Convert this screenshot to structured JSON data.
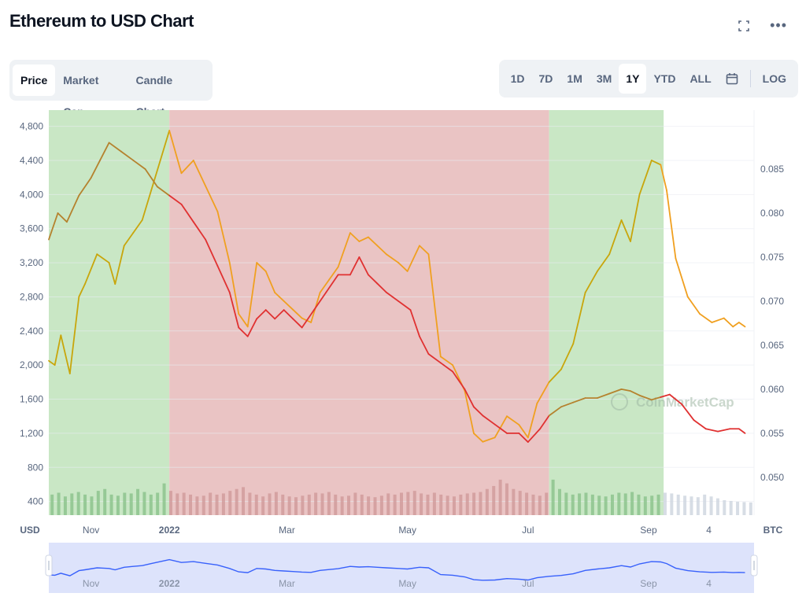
{
  "header": {
    "title": "Ethereum to USD Chart",
    "expand_icon": "expand-icon",
    "more_icon": "more-icon",
    "more_glyph": "•••"
  },
  "tabs": [
    {
      "label": "Price",
      "active": true
    },
    {
      "label": "Market Cap",
      "active": false
    },
    {
      "label": "Candle Chart",
      "active": false
    }
  ],
  "ranges": [
    {
      "label": "1D",
      "active": false
    },
    {
      "label": "7D",
      "active": false
    },
    {
      "label": "1M",
      "active": false
    },
    {
      "label": "3M",
      "active": false
    },
    {
      "label": "1Y",
      "active": true
    },
    {
      "label": "YTD",
      "active": false
    },
    {
      "label": "ALL",
      "active": false
    }
  ],
  "range_extra": {
    "calendar_icon": "calendar-icon",
    "log_label": "LOG"
  },
  "colors": {
    "up_zone": "#c9e7c5",
    "down_zone": "#eac4c4",
    "usd_up": "#c8a60c",
    "usd_down": "#f0a020",
    "btc_up": "#b5822e",
    "btc_down": "#e03131",
    "nav_fill": "#dde3fb",
    "nav_line": "#3861fb"
  },
  "chart_data": {
    "type": "line",
    "title": "Ethereum to USD Chart",
    "watermark": "CoinMarketCap",
    "left_axis": {
      "unit_label": "USD",
      "ticks": [
        400,
        800,
        1200,
        1600,
        2000,
        2400,
        2800,
        3200,
        3600,
        4000,
        4400,
        4800
      ],
      "ylim": [
        240,
        4990
      ]
    },
    "right_axis": {
      "unit_label": "BTC",
      "ticks": [
        0.05,
        0.055,
        0.06,
        0.065,
        0.07,
        0.075,
        0.08,
        0.085
      ],
      "tick_labels": [
        "0.050",
        "0.055",
        "0.060",
        "0.065",
        "0.070",
        "0.075",
        "0.080",
        "0.085"
      ],
      "ylim": [
        0.0457,
        0.0917
      ]
    },
    "x_ticks": [
      {
        "label": "Nov",
        "x": 0.7
      },
      {
        "label": "2022",
        "x": 2.0
      },
      {
        "label": "Mar",
        "x": 3.95
      },
      {
        "label": "May",
        "x": 5.95
      },
      {
        "label": "Jul",
        "x": 7.95
      },
      {
        "label": "Sep",
        "x": 9.95
      },
      {
        "label": "4",
        "x": 10.95
      }
    ],
    "xlim": [
      0,
      11.7
    ],
    "zones": [
      {
        "from": 0.0,
        "to": 2.0,
        "trend": "up"
      },
      {
        "from": 2.0,
        "to": 8.3,
        "trend": "down"
      },
      {
        "from": 8.3,
        "to": 10.2,
        "trend": "up"
      }
    ],
    "series": [
      {
        "axis": "left",
        "x": [
          0.0,
          0.1,
          0.2,
          0.35,
          0.5,
          0.6,
          0.8,
          1.0,
          1.1,
          1.25,
          1.4,
          1.55,
          1.7,
          1.85,
          2.0,
          2.2,
          2.4,
          2.6,
          2.8,
          3.0,
          3.15,
          3.3,
          3.45,
          3.6,
          3.75,
          3.9,
          4.05,
          4.2,
          4.35,
          4.5,
          4.65,
          4.8,
          5.0,
          5.15,
          5.3,
          5.45,
          5.6,
          5.8,
          5.95,
          6.15,
          6.3,
          6.5,
          6.7,
          6.9,
          7.05,
          7.2,
          7.4,
          7.6,
          7.8,
          7.95,
          8.1,
          8.3,
          8.5,
          8.7,
          8.9,
          9.1,
          9.3,
          9.5,
          9.65,
          9.8,
          10.0,
          10.15,
          10.25,
          10.4,
          10.6,
          10.8,
          11.0,
          11.2,
          11.35,
          11.45,
          11.55
        ],
        "y": [
          2050,
          2000,
          2350,
          1900,
          2800,
          2950,
          3300,
          3200,
          2950,
          3400,
          3550,
          3700,
          4050,
          4400,
          4750,
          4250,
          4400,
          4100,
          3800,
          3200,
          2600,
          2450,
          3200,
          3100,
          2850,
          2750,
          2650,
          2550,
          2500,
          2850,
          3000,
          3150,
          3550,
          3450,
          3500,
          3400,
          3300,
          3200,
          3100,
          3400,
          3300,
          2100,
          2000,
          1700,
          1200,
          1100,
          1150,
          1400,
          1300,
          1150,
          1550,
          1800,
          1950,
          2250,
          2850,
          3100,
          3300,
          3700,
          3450,
          4000,
          4400,
          4350,
          4050,
          3250,
          2800,
          2600,
          2500,
          2550,
          2450,
          2500,
          2450
        ],
        "colors": "zone"
      },
      {
        "axis": "right",
        "x": [
          0.0,
          0.15,
          0.3,
          0.5,
          0.7,
          0.85,
          1.0,
          1.2,
          1.4,
          1.6,
          1.8,
          2.0,
          2.2,
          2.4,
          2.6,
          2.8,
          3.0,
          3.15,
          3.3,
          3.45,
          3.6,
          3.75,
          3.9,
          4.05,
          4.2,
          4.4,
          4.6,
          4.8,
          5.0,
          5.15,
          5.3,
          5.45,
          5.6,
          5.8,
          6.0,
          6.15,
          6.3,
          6.5,
          6.7,
          6.9,
          7.05,
          7.2,
          7.4,
          7.6,
          7.8,
          7.95,
          8.15,
          8.3,
          8.5,
          8.7,
          8.9,
          9.1,
          9.3,
          9.5,
          9.65,
          9.8,
          10.0,
          10.15,
          10.3,
          10.5,
          10.7,
          10.9,
          11.1,
          11.3,
          11.45,
          11.55
        ],
        "y": [
          0.077,
          0.08,
          0.079,
          0.082,
          0.084,
          0.086,
          0.088,
          0.087,
          0.086,
          0.085,
          0.083,
          0.082,
          0.081,
          0.079,
          0.077,
          0.074,
          0.071,
          0.067,
          0.066,
          0.068,
          0.069,
          0.068,
          0.069,
          0.068,
          0.067,
          0.069,
          0.071,
          0.073,
          0.073,
          0.075,
          0.073,
          0.072,
          0.071,
          0.07,
          0.069,
          0.066,
          0.064,
          0.063,
          0.062,
          0.06,
          0.058,
          0.057,
          0.056,
          0.055,
          0.055,
          0.054,
          0.0555,
          0.057,
          0.058,
          0.0585,
          0.059,
          0.059,
          0.0595,
          0.06,
          0.0598,
          0.0593,
          0.0588,
          0.0591,
          0.0594,
          0.0583,
          0.0565,
          0.0555,
          0.0552,
          0.0555,
          0.0555,
          0.055
        ],
        "colors": "zone_btc"
      }
    ],
    "volume": {
      "axis_note": "shown as bars along chart bottom",
      "values": [
        0.55,
        0.6,
        0.5,
        0.58,
        0.62,
        0.55,
        0.5,
        0.65,
        0.7,
        0.55,
        0.52,
        0.6,
        0.58,
        0.7,
        0.62,
        0.55,
        0.6,
        0.85,
        0.65,
        0.58,
        0.6,
        0.55,
        0.5,
        0.52,
        0.6,
        0.55,
        0.58,
        0.65,
        0.7,
        0.75,
        0.6,
        0.55,
        0.5,
        0.58,
        0.62,
        0.55,
        0.5,
        0.48,
        0.52,
        0.55,
        0.6,
        0.58,
        0.62,
        0.55,
        0.5,
        0.52,
        0.6,
        0.55,
        0.5,
        0.48,
        0.52,
        0.58,
        0.55,
        0.6,
        0.62,
        0.65,
        0.58,
        0.55,
        0.6,
        0.55,
        0.52,
        0.5,
        0.55,
        0.58,
        0.6,
        0.62,
        0.7,
        0.78,
        0.95,
        0.85,
        0.7,
        0.65,
        0.6,
        0.55,
        0.52,
        0.6,
        0.95,
        0.7,
        0.6,
        0.55,
        0.58,
        0.6,
        0.55,
        0.52,
        0.5,
        0.55,
        0.6,
        0.58,
        0.62,
        0.55,
        0.5,
        0.52,
        0.55,
        0.6,
        0.58,
        0.55,
        0.52,
        0.5,
        0.48,
        0.55,
        0.5,
        0.45,
        0.4,
        0.38,
        0.36,
        0.35,
        0.34
      ]
    },
    "navigator": {
      "x_ticks": [
        "Nov",
        "2022",
        "Mar",
        "May",
        "Jul",
        "Sep",
        "4"
      ]
    }
  }
}
